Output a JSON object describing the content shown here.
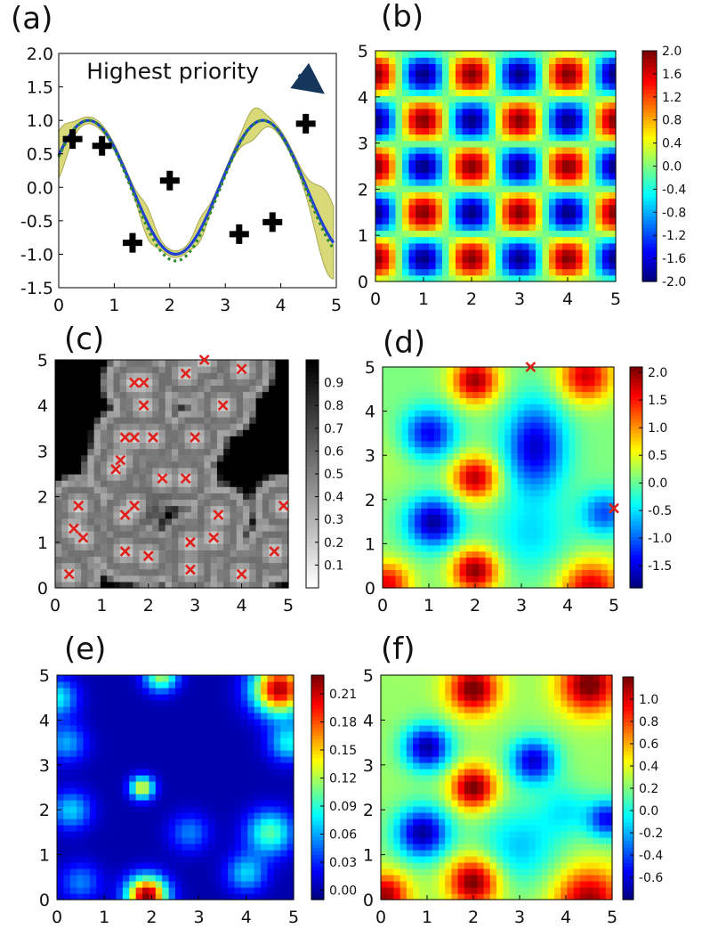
{
  "chart_data": [
    {
      "panel": "(a)",
      "type": "line",
      "xlim": [
        0,
        5
      ],
      "ylim": [
        -1.5,
        2.0
      ],
      "xticks": [
        "0",
        "1",
        "2",
        "3",
        "4",
        "5"
      ],
      "yticks": [
        "2.0",
        "1.5",
        "1.0",
        "0.5",
        "0.0",
        "-0.5",
        "-1.0",
        "-1.5"
      ],
      "annotation": "Highest priority",
      "annotation_target": [
        4.7,
        1.45
      ],
      "observations": [
        {
          "x": 0.25,
          "y": 0.72
        },
        {
          "x": 0.78,
          "y": 0.62
        },
        {
          "x": 1.33,
          "y": -0.83
        },
        {
          "x": 2.0,
          "y": 0.1
        },
        {
          "x": 3.25,
          "y": -0.7
        },
        {
          "x": 3.85,
          "y": -0.52
        },
        {
          "x": 4.45,
          "y": 0.95
        }
      ],
      "series": [
        {
          "name": "prediction",
          "style": "solid",
          "color": "#1f3fd6"
        },
        {
          "name": "true function",
          "style": "dotted",
          "color": "#2e8b2e"
        },
        {
          "name": "uncertainty band",
          "style": "fill",
          "color": "#d9d97a"
        }
      ]
    },
    {
      "panel": "(b)",
      "type": "heatmap",
      "field": "true",
      "xlim": [
        0,
        5
      ],
      "ylim": [
        0,
        5
      ],
      "xticks": [
        "0",
        "1",
        "2",
        "3",
        "4",
        "5"
      ],
      "yticks": [
        "0",
        "1",
        "2",
        "3",
        "4",
        "5"
      ],
      "colormap": "jet",
      "vmin": -2.0,
      "vmax": 2.0,
      "colorbar_ticks": [
        "2.0",
        "1.6",
        "1.2",
        "0.8",
        "0.4",
        "0.0",
        "-0.4",
        "-0.8",
        "-1.2",
        "-1.6",
        "-2.0"
      ]
    },
    {
      "panel": "(c)",
      "type": "heatmap",
      "field": "uncertainty-gray",
      "xlim": [
        0,
        5
      ],
      "ylim": [
        0,
        5
      ],
      "xticks": [
        "0",
        "1",
        "2",
        "3",
        "4",
        "5"
      ],
      "yticks": [
        "0",
        "1",
        "2",
        "3",
        "4",
        "5"
      ],
      "colormap": "gray_r",
      "vmin": 0.0,
      "vmax": 1.0,
      "colorbar_ticks": [
        "0.9",
        "0.8",
        "0.7",
        "0.6",
        "0.5",
        "0.4",
        "0.3",
        "0.2",
        "0.1"
      ],
      "samples": [
        [
          3.2,
          5.0
        ],
        [
          4.0,
          4.8
        ],
        [
          2.8,
          4.7
        ],
        [
          1.7,
          4.5
        ],
        [
          1.9,
          4.5
        ],
        [
          1.9,
          4.0
        ],
        [
          3.6,
          4.0
        ],
        [
          1.5,
          3.3
        ],
        [
          1.7,
          3.3
        ],
        [
          2.1,
          3.3
        ],
        [
          3.0,
          3.3
        ],
        [
          1.4,
          2.8
        ],
        [
          1.3,
          2.6
        ],
        [
          2.3,
          2.4
        ],
        [
          2.8,
          2.4
        ],
        [
          0.5,
          1.8
        ],
        [
          1.7,
          1.8
        ],
        [
          1.5,
          1.6
        ],
        [
          3.5,
          1.6
        ],
        [
          4.9,
          1.8
        ],
        [
          0.4,
          1.3
        ],
        [
          0.6,
          1.1
        ],
        [
          2.9,
          1.0
        ],
        [
          3.4,
          1.1
        ],
        [
          1.5,
          0.8
        ],
        [
          2.0,
          0.7
        ],
        [
          4.7,
          0.8
        ],
        [
          2.9,
          0.4
        ],
        [
          0.3,
          0.3
        ],
        [
          4.0,
          0.3
        ]
      ]
    },
    {
      "panel": "(d)",
      "type": "heatmap",
      "field": "estimate",
      "xlim": [
        0,
        5
      ],
      "ylim": [
        0,
        5
      ],
      "xticks": [
        "0",
        "1",
        "2",
        "3",
        "4",
        "5"
      ],
      "yticks": [
        "0",
        "1",
        "2",
        "3",
        "4",
        "5"
      ],
      "colormap": "jet",
      "vmin": -1.9,
      "vmax": 2.1,
      "colorbar_ticks": [
        "2.0",
        "1.5",
        "1.0",
        "0.5",
        "0.0",
        "-0.5",
        "-1.0",
        "-1.5"
      ],
      "samples": [
        [
          3.2,
          5.0
        ],
        [
          5.0,
          1.8
        ]
      ]
    },
    {
      "panel": "(e)",
      "type": "heatmap",
      "field": "error",
      "xlim": [
        0,
        5
      ],
      "ylim": [
        0,
        5
      ],
      "xticks": [
        "0",
        "1",
        "2",
        "3",
        "4",
        "5"
      ],
      "yticks": [
        "0",
        "1",
        "2",
        "3",
        "4",
        "5"
      ],
      "colormap": "jet",
      "vmin": -0.01,
      "vmax": 0.23,
      "colorbar_ticks": [
        "0.21",
        "0.18",
        "0.15",
        "0.12",
        "0.09",
        "0.06",
        "0.03",
        "0.00"
      ]
    },
    {
      "panel": "(f)",
      "type": "heatmap",
      "field": "estimate2",
      "xlim": [
        0,
        5
      ],
      "ylim": [
        0,
        5
      ],
      "xticks": [
        "0",
        "1",
        "2",
        "3",
        "4",
        "5"
      ],
      "yticks": [
        "0",
        "1",
        "2",
        "3",
        "4",
        "5"
      ],
      "colormap": "jet",
      "vmin": -0.8,
      "vmax": 1.2,
      "colorbar_ticks": [
        "1.0",
        "0.8",
        "0.6",
        "0.4",
        "0.2",
        "0.0",
        "-0.2",
        "-0.4",
        "-0.6"
      ]
    }
  ]
}
